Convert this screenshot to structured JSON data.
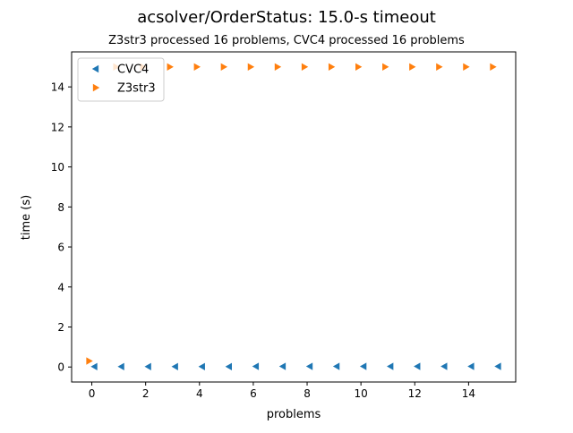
{
  "chart_data": {
    "type": "scatter",
    "title": "acsolver/OrderStatus: 15.0-s timeout",
    "subtitle": "Z3str3 processed 16 problems, CVC4 processed 16 problems",
    "xlabel": "problems",
    "ylabel": "time (s)",
    "xlim": [
      -0.75,
      15.75
    ],
    "ylim": [
      -0.75,
      15.75
    ],
    "xticks": [
      0,
      2,
      4,
      6,
      8,
      10,
      12,
      14
    ],
    "yticks": [
      0,
      2,
      4,
      6,
      8,
      10,
      12,
      14
    ],
    "grid": false,
    "legend_position": "top-left",
    "series": [
      {
        "name": "CVC4",
        "marker": "triangle-left",
        "color": "#1f77b4",
        "x": [
          0,
          1,
          2,
          3,
          4,
          5,
          6,
          7,
          8,
          9,
          10,
          11,
          12,
          13,
          14,
          15
        ],
        "y": [
          0.02,
          0.02,
          0.02,
          0.02,
          0.02,
          0.02,
          0.03,
          0.03,
          0.03,
          0.03,
          0.03,
          0.03,
          0.03,
          0.03,
          0.03,
          0.03
        ]
      },
      {
        "name": "Z3str3",
        "marker": "triangle-right",
        "color": "#ff7f0e",
        "x": [
          0,
          1,
          2,
          3,
          4,
          5,
          6,
          7,
          8,
          9,
          10,
          11,
          12,
          13,
          14,
          15
        ],
        "y": [
          0.3,
          15.0,
          15.0,
          15.0,
          15.0,
          15.0,
          15.0,
          15.0,
          15.0,
          15.0,
          15.0,
          15.0,
          15.0,
          15.0,
          15.0,
          15.0
        ]
      }
    ]
  }
}
